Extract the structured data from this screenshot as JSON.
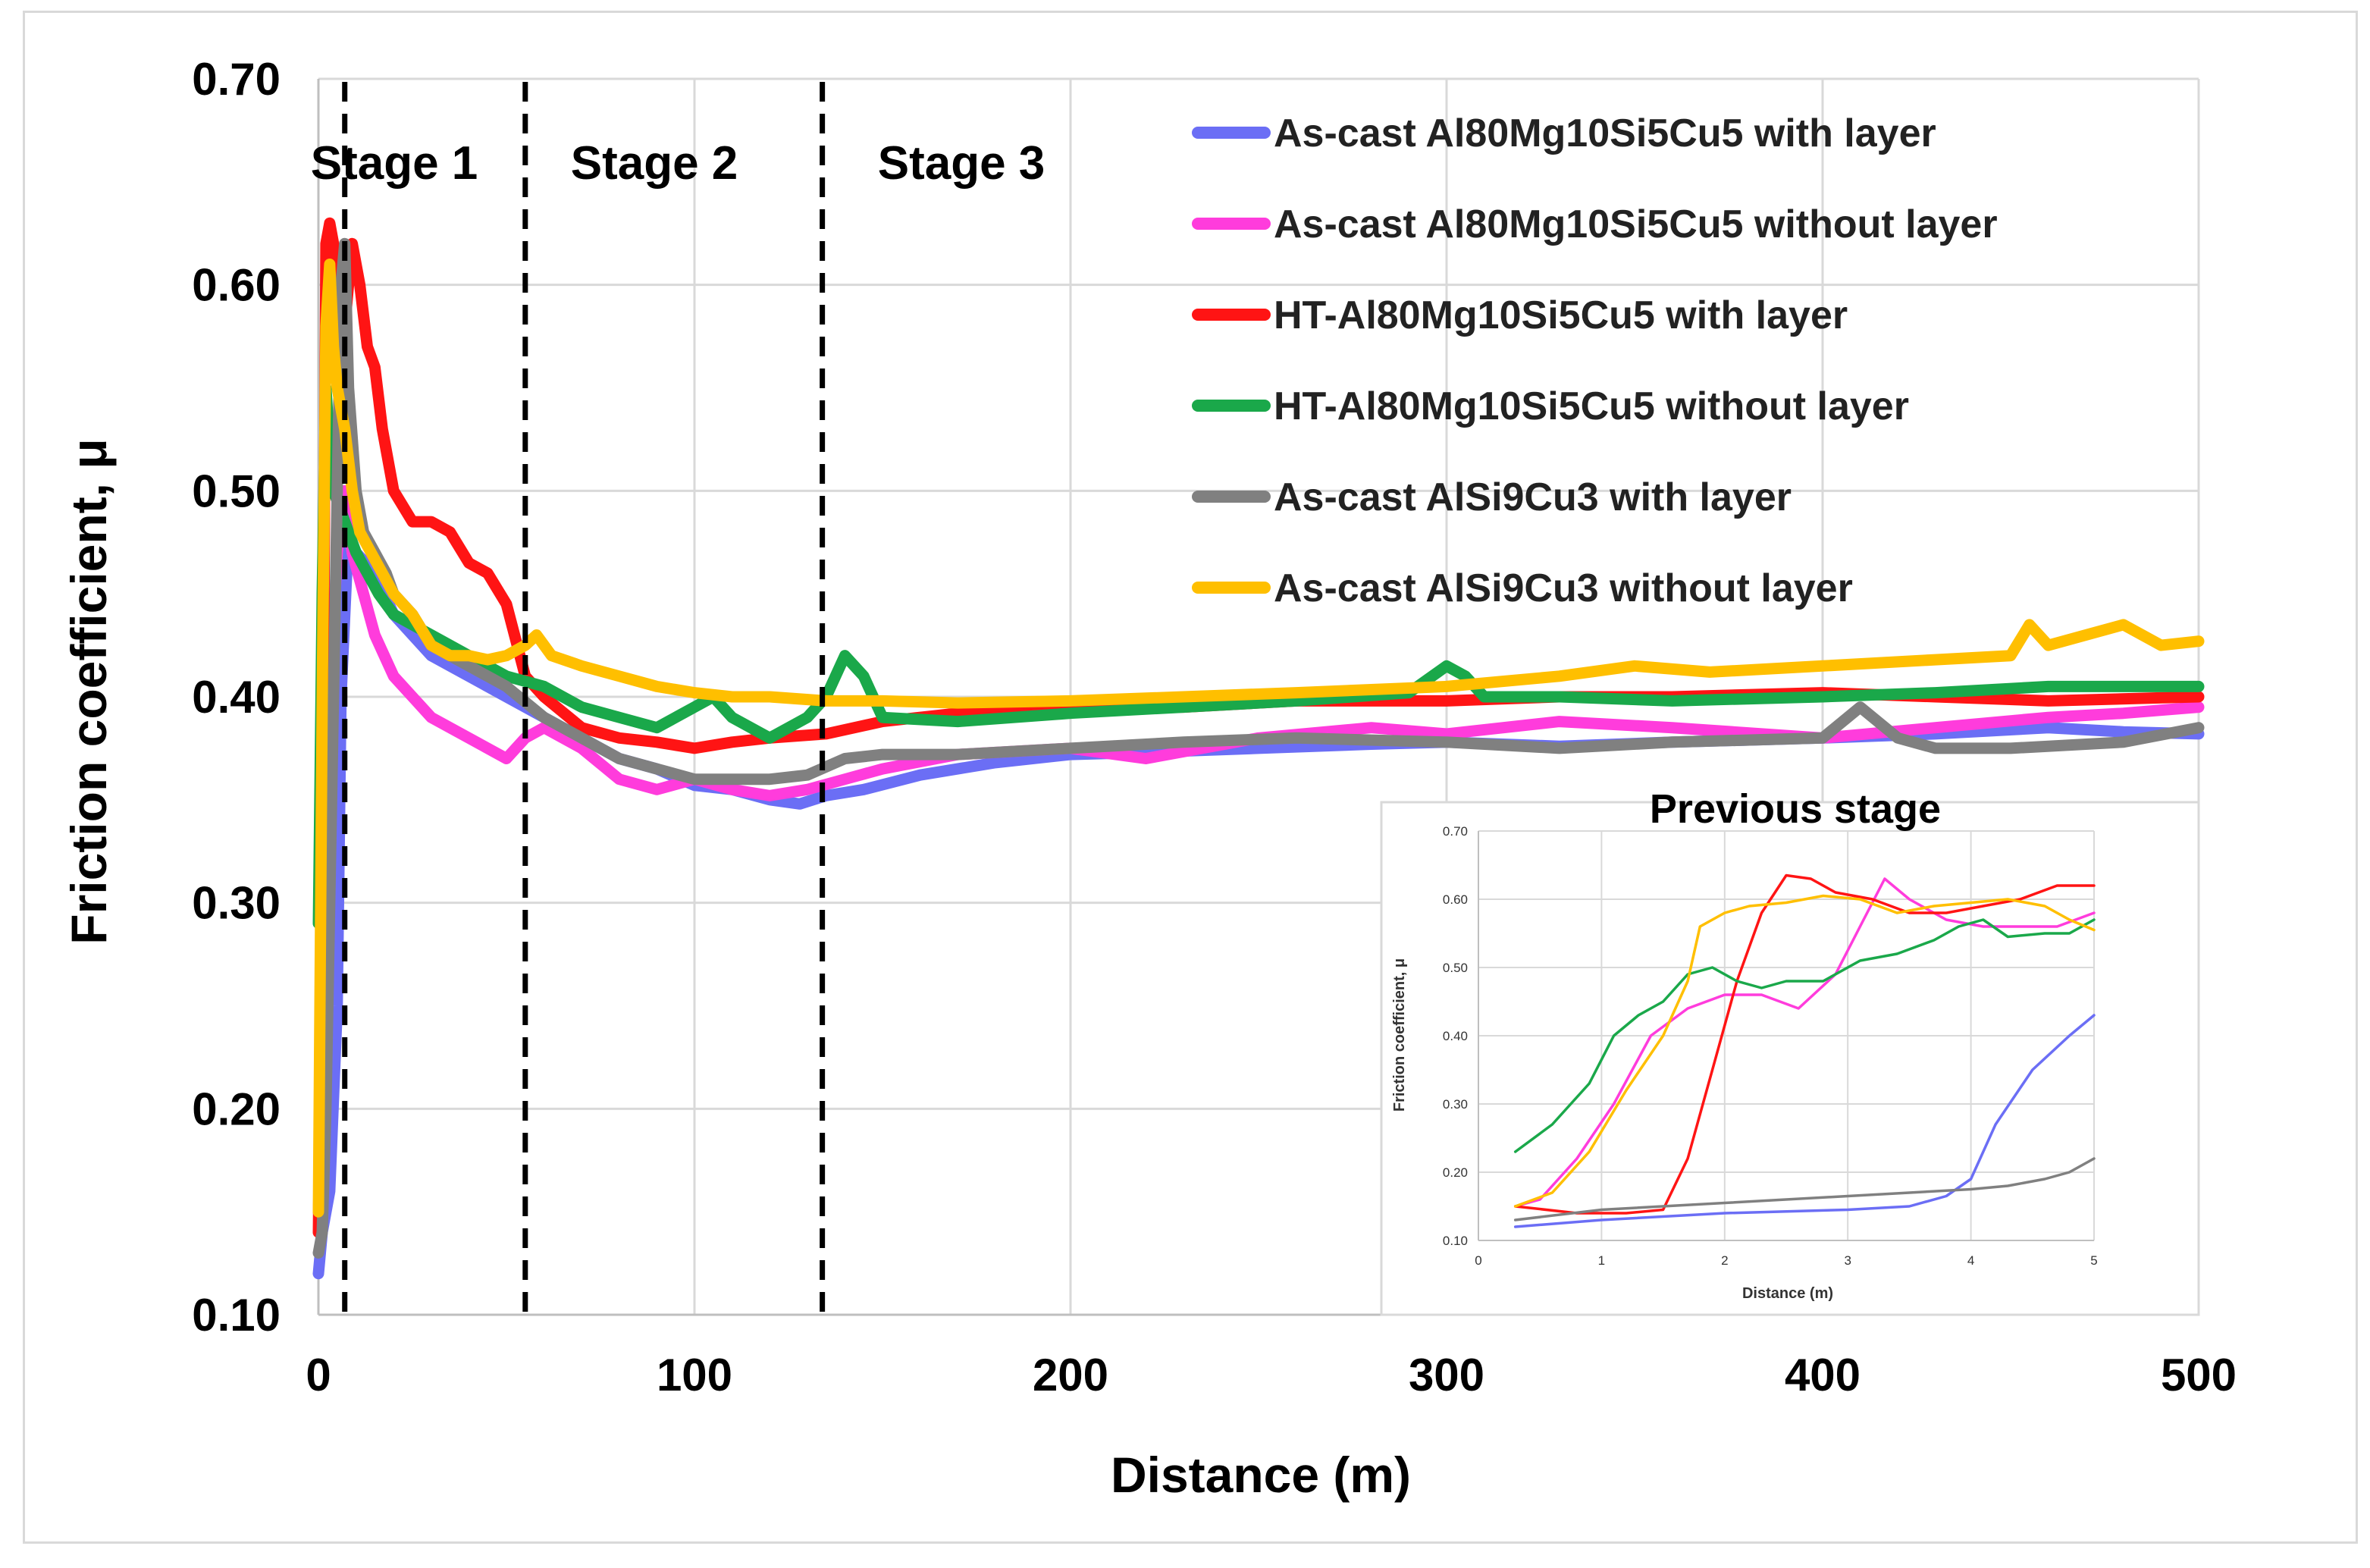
{
  "chart_data": [
    {
      "type": "line",
      "title": "",
      "xlabel": "Distance (m)",
      "ylabel": "Friction coefficient, μ",
      "xlim": [
        0,
        500
      ],
      "ylim": [
        0.1,
        0.7
      ],
      "x_ticks": [
        "0",
        "100",
        "200",
        "300",
        "400",
        "500"
      ],
      "y_ticks": [
        "0.10",
        "0.20",
        "0.30",
        "0.40",
        "0.50",
        "0.60",
        "0.70"
      ],
      "grid": true,
      "legend_position": "top-right",
      "stage_markers": [
        {
          "x": 7,
          "label": "Stage 1"
        },
        {
          "x": 55,
          "label": "Stage 2"
        },
        {
          "x": 134,
          "label": "Stage 3"
        }
      ],
      "series": [
        {
          "name": "As-cast Al80Mg10Si5Cu5 with layer",
          "color": "#6b6ef5",
          "x": [
            0,
            1,
            3,
            5,
            6,
            8,
            10,
            15,
            20,
            30,
            40,
            50,
            60,
            70,
            80,
            90,
            100,
            110,
            120,
            128,
            135,
            145,
            160,
            180,
            200,
            220,
            250,
            280,
            300,
            330,
            360,
            400,
            430,
            460,
            480,
            500
          ],
          "y": [
            0.12,
            0.14,
            0.16,
            0.25,
            0.4,
            0.48,
            0.47,
            0.46,
            0.44,
            0.42,
            0.41,
            0.4,
            0.39,
            0.38,
            0.37,
            0.365,
            0.357,
            0.355,
            0.35,
            0.348,
            0.352,
            0.355,
            0.362,
            0.368,
            0.372,
            0.373,
            0.375,
            0.377,
            0.378,
            0.376,
            0.378,
            0.38,
            0.382,
            0.385,
            0.383,
            0.382
          ]
        },
        {
          "name": "As-cast Al80Mg10Si5Cu5 without layer",
          "color": "#ff3cdc",
          "x": [
            0,
            1,
            3,
            5,
            7,
            9,
            12,
            15,
            20,
            25,
            30,
            40,
            50,
            55,
            60,
            70,
            80,
            90,
            100,
            110,
            120,
            130,
            140,
            150,
            170,
            200,
            220,
            250,
            280,
            300,
            330,
            360,
            400,
            430,
            460,
            480,
            500
          ],
          "y": [
            0.15,
            0.2,
            0.4,
            0.47,
            0.5,
            0.47,
            0.45,
            0.43,
            0.41,
            0.4,
            0.39,
            0.38,
            0.37,
            0.38,
            0.385,
            0.375,
            0.36,
            0.355,
            0.36,
            0.355,
            0.352,
            0.355,
            0.36,
            0.365,
            0.372,
            0.375,
            0.37,
            0.38,
            0.385,
            0.382,
            0.388,
            0.385,
            0.38,
            0.385,
            0.39,
            0.392,
            0.395
          ]
        },
        {
          "name": "HT-Al80Mg10Si5Cu5 with layer",
          "color": "#ff1414",
          "x": [
            0,
            1,
            2,
            3,
            5,
            7,
            9,
            11,
            13,
            15,
            17,
            20,
            25,
            30,
            35,
            40,
            45,
            50,
            55,
            60,
            70,
            80,
            90,
            100,
            110,
            120,
            135,
            150,
            170,
            200,
            230,
            260,
            300,
            330,
            360,
            400,
            430,
            460,
            500
          ],
          "y": [
            0.14,
            0.3,
            0.62,
            0.63,
            0.61,
            0.58,
            0.62,
            0.6,
            0.57,
            0.56,
            0.53,
            0.5,
            0.485,
            0.485,
            0.48,
            0.465,
            0.46,
            0.445,
            0.41,
            0.4,
            0.385,
            0.38,
            0.378,
            0.375,
            0.378,
            0.38,
            0.382,
            0.388,
            0.392,
            0.395,
            0.395,
            0.398,
            0.398,
            0.4,
            0.4,
            0.402,
            0.4,
            0.398,
            0.4
          ]
        },
        {
          "name": "HT-Al80Mg10Si5Cu5 without layer",
          "color": "#1aa84a",
          "x": [
            0,
            1,
            2,
            3,
            4,
            6,
            8,
            10,
            13,
            16,
            20,
            25,
            30,
            40,
            50,
            60,
            70,
            80,
            90,
            100,
            105,
            110,
            120,
            130,
            135,
            140,
            145,
            150,
            170,
            200,
            230,
            260,
            290,
            300,
            305,
            310,
            330,
            360,
            400,
            430,
            460,
            500
          ],
          "y": [
            0.29,
            0.45,
            0.55,
            0.52,
            0.5,
            0.49,
            0.48,
            0.47,
            0.46,
            0.45,
            0.44,
            0.435,
            0.43,
            0.42,
            0.41,
            0.405,
            0.395,
            0.39,
            0.385,
            0.395,
            0.4,
            0.39,
            0.38,
            0.39,
            0.4,
            0.42,
            0.41,
            0.39,
            0.388,
            0.392,
            0.395,
            0.398,
            0.402,
            0.415,
            0.41,
            0.4,
            0.4,
            0.398,
            0.4,
            0.402,
            0.405,
            0.405
          ]
        },
        {
          "name": "As-cast AlSi9Cu3 with layer",
          "color": "#808080",
          "x": [
            0,
            1,
            2,
            3,
            5,
            6,
            7,
            8,
            10,
            12,
            15,
            18,
            20,
            25,
            30,
            40,
            50,
            60,
            70,
            80,
            90,
            100,
            110,
            120,
            130,
            140,
            150,
            170,
            200,
            230,
            260,
            300,
            330,
            360,
            400,
            410,
            420,
            430,
            450,
            480,
            500
          ],
          "y": [
            0.13,
            0.14,
            0.2,
            0.3,
            0.5,
            0.6,
            0.62,
            0.55,
            0.5,
            0.48,
            0.47,
            0.46,
            0.45,
            0.44,
            0.425,
            0.415,
            0.405,
            0.39,
            0.38,
            0.37,
            0.365,
            0.36,
            0.36,
            0.36,
            0.362,
            0.37,
            0.372,
            0.372,
            0.375,
            0.378,
            0.38,
            0.378,
            0.375,
            0.378,
            0.38,
            0.395,
            0.38,
            0.375,
            0.375,
            0.378,
            0.385
          ]
        },
        {
          "name": "As-cast AlSi9Cu3 without layer",
          "color": "#ffbf00",
          "x": [
            0,
            1,
            2,
            3,
            4,
            5,
            7,
            9,
            11,
            14,
            17,
            20,
            25,
            30,
            35,
            40,
            45,
            50,
            55,
            58,
            62,
            70,
            80,
            90,
            100,
            110,
            120,
            135,
            150,
            170,
            200,
            230,
            260,
            300,
            330,
            350,
            370,
            400,
            430,
            450,
            455,
            460,
            470,
            480,
            490,
            500
          ],
          "y": [
            0.15,
            0.4,
            0.58,
            0.61,
            0.57,
            0.55,
            0.53,
            0.5,
            0.48,
            0.47,
            0.46,
            0.45,
            0.44,
            0.425,
            0.42,
            0.42,
            0.418,
            0.42,
            0.425,
            0.43,
            0.42,
            0.415,
            0.41,
            0.405,
            0.402,
            0.4,
            0.4,
            0.398,
            0.398,
            0.397,
            0.398,
            0.4,
            0.402,
            0.405,
            0.41,
            0.415,
            0.412,
            0.415,
            0.418,
            0.42,
            0.435,
            0.425,
            0.43,
            0.435,
            0.425,
            0.427
          ]
        }
      ]
    },
    {
      "type": "line",
      "title": "Previous stage",
      "xlabel": "Distance (m)",
      "ylabel": "Friction coefficient, μ",
      "xlim": [
        0,
        5
      ],
      "ylim": [
        0.1,
        0.7
      ],
      "x_ticks": [
        "0",
        "1",
        "2",
        "3",
        "4",
        "5"
      ],
      "y_ticks": [
        "0.10",
        "0.20",
        "0.30",
        "0.40",
        "0.50",
        "0.60",
        "0.70"
      ],
      "grid": true,
      "series": [
        {
          "name": "As-cast Al80Mg10Si5Cu5 with layer",
          "color": "#6b6ef5",
          "x": [
            0.3,
            1.0,
            2.0,
            3.0,
            3.5,
            3.8,
            4.0,
            4.2,
            4.5,
            4.8,
            5.0
          ],
          "y": [
            0.12,
            0.13,
            0.14,
            0.145,
            0.15,
            0.165,
            0.19,
            0.27,
            0.35,
            0.4,
            0.43
          ]
        },
        {
          "name": "As-cast Al80Mg10Si5Cu5 without layer",
          "color": "#ff3cdc",
          "x": [
            0.3,
            0.5,
            0.8,
            1.1,
            1.4,
            1.7,
            2.0,
            2.3,
            2.6,
            2.9,
            3.1,
            3.3,
            3.5,
            3.8,
            4.1,
            4.4,
            4.7,
            5.0
          ],
          "y": [
            0.15,
            0.16,
            0.22,
            0.3,
            0.4,
            0.44,
            0.46,
            0.46,
            0.44,
            0.49,
            0.56,
            0.63,
            0.6,
            0.57,
            0.56,
            0.56,
            0.56,
            0.58
          ]
        },
        {
          "name": "HT-Al80Mg10Si5Cu5 with layer",
          "color": "#ff1414",
          "x": [
            0.3,
            0.8,
            1.2,
            1.5,
            1.7,
            1.9,
            2.1,
            2.3,
            2.5,
            2.7,
            2.9,
            3.2,
            3.5,
            3.8,
            4.1,
            4.4,
            4.7,
            5.0
          ],
          "y": [
            0.15,
            0.14,
            0.14,
            0.145,
            0.22,
            0.35,
            0.48,
            0.58,
            0.635,
            0.63,
            0.61,
            0.6,
            0.58,
            0.58,
            0.59,
            0.6,
            0.62,
            0.62
          ]
        },
        {
          "name": "HT-Al80Mg10Si5Cu5 without layer",
          "color": "#1aa84a",
          "x": [
            0.3,
            0.6,
            0.9,
            1.1,
            1.3,
            1.5,
            1.7,
            1.9,
            2.1,
            2.3,
            2.5,
            2.8,
            3.1,
            3.4,
            3.7,
            3.9,
            4.1,
            4.3,
            4.6,
            4.8,
            5.0
          ],
          "y": [
            0.23,
            0.27,
            0.33,
            0.4,
            0.43,
            0.45,
            0.49,
            0.5,
            0.48,
            0.47,
            0.48,
            0.48,
            0.51,
            0.52,
            0.54,
            0.56,
            0.57,
            0.545,
            0.55,
            0.55,
            0.57
          ]
        },
        {
          "name": "As-cast AlSi9Cu3 with layer",
          "color": "#808080",
          "x": [
            0.3,
            1.0,
            2.0,
            3.0,
            3.5,
            4.0,
            4.3,
            4.6,
            4.8,
            5.0
          ],
          "y": [
            0.13,
            0.145,
            0.155,
            0.165,
            0.17,
            0.175,
            0.18,
            0.19,
            0.2,
            0.22
          ]
        },
        {
          "name": "As-cast AlSi9Cu3 without layer",
          "color": "#ffbf00",
          "x": [
            0.3,
            0.6,
            0.9,
            1.2,
            1.5,
            1.7,
            1.8,
            2.0,
            2.2,
            2.5,
            2.8,
            3.1,
            3.4,
            3.7,
            4.0,
            4.3,
            4.6,
            4.8,
            5.0
          ],
          "y": [
            0.15,
            0.17,
            0.23,
            0.32,
            0.4,
            0.48,
            0.56,
            0.58,
            0.59,
            0.595,
            0.605,
            0.6,
            0.58,
            0.59,
            0.595,
            0.6,
            0.59,
            0.57,
            0.555
          ]
        }
      ]
    }
  ]
}
